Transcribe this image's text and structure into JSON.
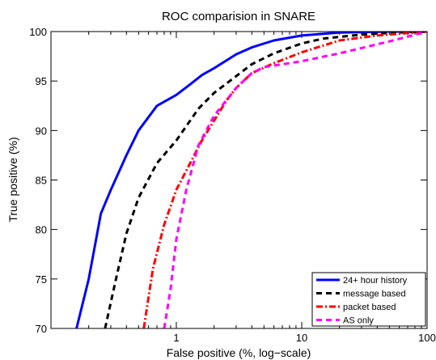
{
  "chart_data": {
    "type": "line",
    "title": "ROC comparision in SNARE",
    "xlabel": "False positive (%, log−scale)",
    "ylabel": "True positive (%)",
    "xscale": "log",
    "xlim": [
      0.1,
      100
    ],
    "ylim": [
      70,
      100
    ],
    "x_ticks": [
      {
        "value": 1,
        "label": "1"
      },
      {
        "value": 10,
        "label": "10"
      },
      {
        "value": 100,
        "label": "100"
      }
    ],
    "y_ticks": [
      {
        "value": 70,
        "label": "70"
      },
      {
        "value": 75,
        "label": "75"
      },
      {
        "value": 80,
        "label": "80"
      },
      {
        "value": 85,
        "label": "85"
      },
      {
        "value": 90,
        "label": "90"
      },
      {
        "value": 95,
        "label": "95"
      },
      {
        "value": 100,
        "label": "100"
      }
    ],
    "grid": false,
    "legend_position": "bottom-right",
    "series": [
      {
        "name": "24+ hour history",
        "color": "#0000ff",
        "style": "solid",
        "points": [
          [
            0.16,
            70
          ],
          [
            0.2,
            75
          ],
          [
            0.25,
            81.6
          ],
          [
            0.3,
            84
          ],
          [
            0.4,
            87.5
          ],
          [
            0.5,
            90
          ],
          [
            0.7,
            92.5
          ],
          [
            1,
            93.6
          ],
          [
            1.3,
            94.7
          ],
          [
            1.6,
            95.6
          ],
          [
            2,
            96.3
          ],
          [
            3,
            97.7
          ],
          [
            4,
            98.4
          ],
          [
            6,
            99.1
          ],
          [
            10,
            99.6
          ],
          [
            20,
            99.9
          ],
          [
            50,
            100
          ],
          [
            100,
            100
          ]
        ]
      },
      {
        "name": "message based",
        "color": "#000000",
        "style": "dashed",
        "points": [
          [
            0.27,
            70
          ],
          [
            0.33,
            75
          ],
          [
            0.4,
            79.6
          ],
          [
            0.5,
            83.2
          ],
          [
            0.7,
            86.7
          ],
          [
            1,
            89
          ],
          [
            1.5,
            92.2
          ],
          [
            2,
            93.8
          ],
          [
            3,
            95.5
          ],
          [
            4,
            96.7
          ],
          [
            6,
            97.8
          ],
          [
            10,
            98.8
          ],
          [
            15,
            99.3
          ],
          [
            30,
            99.7
          ],
          [
            60,
            99.9
          ],
          [
            100,
            100
          ]
        ]
      },
      {
        "name": "packet based",
        "color": "#ff0000",
        "style": "dashdot",
        "points": [
          [
            0.55,
            70
          ],
          [
            0.65,
            76
          ],
          [
            0.8,
            80.5
          ],
          [
            1,
            84
          ],
          [
            1.3,
            86.8
          ],
          [
            1.6,
            89
          ],
          [
            2,
            91
          ],
          [
            2.5,
            93
          ],
          [
            3,
            94.3
          ],
          [
            4,
            95.8
          ],
          [
            6,
            96.8
          ],
          [
            10,
            97.9
          ],
          [
            20,
            99.1
          ],
          [
            40,
            99.6
          ],
          [
            100,
            100
          ]
        ]
      },
      {
        "name": "AS only",
        "color": "#ff00ff",
        "style": "dashed",
        "points": [
          [
            0.8,
            70
          ],
          [
            0.9,
            74
          ],
          [
            1,
            79
          ],
          [
            1.2,
            84
          ],
          [
            1.5,
            88.5
          ],
          [
            2,
            91.5
          ],
          [
            3,
            94.3
          ],
          [
            4,
            95.8
          ],
          [
            5,
            96.4
          ],
          [
            10,
            97
          ],
          [
            20,
            97.8
          ],
          [
            50,
            99
          ],
          [
            100,
            100
          ]
        ]
      }
    ]
  }
}
